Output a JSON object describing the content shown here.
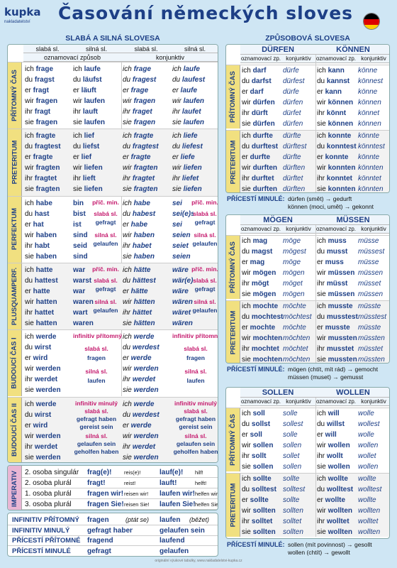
{
  "header": {
    "logo": "kupka",
    "logo_sub": "nakladatelství",
    "title": "Časování německých sloves",
    "left_section": "SLABÁ A SILNÁ SLOVESA",
    "right_section": "ZPŮSOBOVÁ SLOVESA"
  },
  "flag_colors": [
    "#000000",
    "#dd0000",
    "#ffce00"
  ],
  "left": {
    "col_weak": "slabá sl.",
    "col_strong": "silná sl.",
    "ind": "oznamovací způsob",
    "konj": "konjunktiv",
    "blocks": [
      {
        "label": "PŘÍTOMNÝ ČAS",
        "rows": [
          [
            "ich frage",
            "ich laufe",
            "ich frage",
            "ich laufe"
          ],
          [
            "du fragst",
            "du läufst",
            "du fragest",
            "du laufest"
          ],
          [
            "er fragt",
            "er läuft",
            "er frage",
            "er laufe"
          ],
          [
            "wir fragen",
            "wir laufen",
            "wir fragen",
            "wir laufen"
          ],
          [
            "ihr fragt",
            "ihr lauft",
            "ihr fraget",
            "ihr laufet"
          ],
          [
            "sie fragen",
            "sie laufen",
            "sie fragen",
            "sie laufen"
          ]
        ]
      },
      {
        "label": "PRETERITUM",
        "rows": [
          [
            "ich fragte",
            "ich lief",
            "ich fragte",
            "ich liefe"
          ],
          [
            "du fragtest",
            "du liefst",
            "du fragtest",
            "du liefest"
          ],
          [
            "er fragte",
            "er lief",
            "er fragte",
            "er liefe"
          ],
          [
            "wir fragten",
            "wir liefen",
            "wir fragten",
            "wir liefen"
          ],
          [
            "ihr fragtet",
            "ihr lieft",
            "ihr fragtet",
            "ihr liefet"
          ],
          [
            "sie fragten",
            "sie liefen",
            "sie fragten",
            "sie liefen"
          ]
        ]
      },
      {
        "label": "PERFEKTUM",
        "rows": [
          [
            "ich habe",
            "bin",
            "ich habe",
            "sei"
          ],
          [
            "du hast",
            "bist",
            "du habest",
            "sei(e)st"
          ],
          [
            "er hat",
            "ist",
            "er habe",
            "sei"
          ],
          [
            "wir haben",
            "sind",
            "wir haben",
            "seien"
          ],
          [
            "ihr habt",
            "seid",
            "ihr habet",
            "seiet"
          ],
          [
            "sie haben",
            "sind",
            "sie haben",
            "seien"
          ]
        ],
        "notes": [
          "příč. min.",
          "slabá sl.",
          "gefragt",
          "silná sl.",
          "gelaufen"
        ]
      },
      {
        "label": "PLUSQUAMPERF.",
        "rows": [
          [
            "ich hatte",
            "war",
            "ich hätte",
            "wäre"
          ],
          [
            "du hattest",
            "warst",
            "du hättest",
            "wär(e)st"
          ],
          [
            "er hatte",
            "war",
            "er hätte",
            "wäre"
          ],
          [
            "wir hatten",
            "waren",
            "wir hätten",
            "wären"
          ],
          [
            "ihr hattet",
            "wart",
            "ihr hättet",
            "wäret"
          ],
          [
            "sie hatten",
            "waren",
            "sie hätten",
            "wären"
          ]
        ],
        "notes": [
          "příč. min.",
          "slabá sl.",
          "gefragt",
          "silná sl.",
          "gelaufen"
        ]
      },
      {
        "label": "BUDOUCÍ ČAS I",
        "rows": [
          [
            "ich werde",
            "",
            "ich werde",
            ""
          ],
          [
            "du wirst",
            "",
            "du werdest",
            ""
          ],
          [
            "er wird",
            "",
            "er werde",
            ""
          ],
          [
            "wir werden",
            "",
            "wir werden",
            ""
          ],
          [
            "ihr werdet",
            "",
            "ihr werdet",
            ""
          ],
          [
            "sie werden",
            "",
            "sie werden",
            ""
          ]
        ],
        "notes": [
          "infinitiv přítomný",
          "slabá sl.",
          "fragen",
          "silná sl.",
          "laufen"
        ]
      },
      {
        "label": "BUDOUCÍ ČAS II",
        "rows": [
          [
            "ich werde",
            "",
            "ich werde",
            ""
          ],
          [
            "du wirst",
            "",
            "du werdest",
            ""
          ],
          [
            "er wird",
            "",
            "er werde",
            ""
          ],
          [
            "wir werden",
            "",
            "wir werden",
            ""
          ],
          [
            "ihr werdet",
            "",
            "ihr werdet",
            ""
          ],
          [
            "sie werden",
            "",
            "sie werden",
            ""
          ]
        ],
        "notes": [
          "infinitiv minulý",
          "slabá sl.",
          "gefragt haben",
          "gereist sein",
          "silná sl.",
          "gelaufen sein",
          "geholfen haben"
        ]
      }
    ],
    "imperativ": {
      "label": "IMPERATIV",
      "rows": [
        [
          "2. osoba singulár",
          "frag(e)!",
          "reis(e)!",
          "lauf(e)!",
          "hilf!"
        ],
        [
          "2. osoba plurál",
          "fragt!",
          "reist!",
          "lauft!",
          "helft!"
        ],
        [
          "1. osoba plurál",
          "fragen wir!",
          "reisen wir!",
          "laufen wir!",
          "helfen wir!"
        ],
        [
          "3. osoba plurál",
          "fragen Sie!",
          "reisen Sie!",
          "laufen Sie!",
          "helfen Sie!"
        ]
      ]
    },
    "forms": [
      [
        "INFINITIV PŘÍTOMNÝ",
        "fragen",
        "(ptát se)",
        "laufen",
        "(běžet)"
      ],
      [
        "INFINITIV MINULÝ",
        "gefragt haben",
        "",
        "gelaufen sein",
        ""
      ],
      [
        "PŘÍCESTÍ PŘÍTOMNÉ",
        "fragend",
        "",
        "laufend",
        ""
      ],
      [
        "PŘÍCESTÍ MINULÉ",
        "gefragt",
        "",
        "gelaufen",
        ""
      ]
    ]
  },
  "modal": {
    "ind": "oznamovací zp.",
    "konj": "konjunktiv",
    "label_pres": "PŘÍTOMNÝ ČAS",
    "label_pret": "PRETERITUM",
    "participle_label": "PŘÍCESTÍ MINULÉ:",
    "groups": [
      {
        "v1": "DÜRFEN",
        "v2": "KÖNNEN",
        "pres": [
          [
            "ich darf",
            "dürfe",
            "ich kann",
            "könne"
          ],
          [
            "du darfst",
            "dürfest",
            "du kannst",
            "könnest"
          ],
          [
            "er darf",
            "dürfe",
            "er kann",
            "könne"
          ],
          [
            "wir dürfen",
            "dürfen",
            "wir können",
            "können"
          ],
          [
            "ihr dürft",
            "dürfet",
            "ihr könnt",
            "könnet"
          ],
          [
            "sie dürfen",
            "dürfen",
            "sie können",
            "können"
          ]
        ],
        "pret": [
          [
            "ich durfte",
            "dürfte",
            "ich konnte",
            "könnte"
          ],
          [
            "du durftest",
            "dürftest",
            "du konntest",
            "könntest"
          ],
          [
            "er durfte",
            "dürfte",
            "er konnte",
            "könnte"
          ],
          [
            "wir durften",
            "dürften",
            "wir konnten",
            "könnten"
          ],
          [
            "ihr durftet",
            "dürftet",
            "ihr konntet",
            "könntet"
          ],
          [
            "sie durften",
            "dürften",
            "sie konnten",
            "könnten"
          ]
        ],
        "part": [
          "dürfen (smět) → gedurft",
          "können (moci, umět) → gekonnt"
        ]
      },
      {
        "v1": "MÖGEN",
        "v2": "MÜSSEN",
        "pres": [
          [
            "ich mag",
            "möge",
            "ich muss",
            "müsse"
          ],
          [
            "du magst",
            "mögest",
            "du musst",
            "müssest"
          ],
          [
            "er mag",
            "möge",
            "er muss",
            "müsse"
          ],
          [
            "wir mögen",
            "mögen",
            "wir müssen",
            "müssen"
          ],
          [
            "ihr mögt",
            "möget",
            "ihr müsst",
            "müsset"
          ],
          [
            "sie mögen",
            "mögen",
            "sie müssen",
            "müssen"
          ]
        ],
        "pret": [
          [
            "ich mochte",
            "möchte",
            "ich musste",
            "müsste"
          ],
          [
            "du mochtest",
            "möchtest",
            "du musstest",
            "müsstest"
          ],
          [
            "er mochte",
            "möchte",
            "er musste",
            "müsste"
          ],
          [
            "wir mochten",
            "möchten",
            "wir mussten",
            "müssten"
          ],
          [
            "ihr mochtet",
            "möchtet",
            "ihr musstet",
            "müsstet"
          ],
          [
            "sie mochten",
            "möchten",
            "sie mussten",
            "müssten"
          ]
        ],
        "part": [
          "mögen (chtít, mít rád) → gemocht",
          "müssen (muset) → gemusst"
        ]
      },
      {
        "v1": "SOLLEN",
        "v2": "WOLLEN",
        "pres": [
          [
            "ich soll",
            "solle",
            "ich will",
            "wolle"
          ],
          [
            "du sollst",
            "sollest",
            "du willst",
            "wollest"
          ],
          [
            "er soll",
            "solle",
            "er will",
            "wolle"
          ],
          [
            "wir sollen",
            "sollen",
            "wir wollen",
            "wollen"
          ],
          [
            "ihr sollt",
            "sollet",
            "ihr wollt",
            "wollet"
          ],
          [
            "sie sollen",
            "sollen",
            "sie wollen",
            "wollen"
          ]
        ],
        "pret": [
          [
            "ich sollte",
            "sollte",
            "ich wollte",
            "wollte"
          ],
          [
            "du solltest",
            "solltest",
            "du wolltest",
            "wolltest"
          ],
          [
            "er sollte",
            "sollte",
            "er wollte",
            "wollte"
          ],
          [
            "wir sollten",
            "sollten",
            "wir wollten",
            "wollten"
          ],
          [
            "ihr solltet",
            "solltet",
            "ihr wolltet",
            "wolltet"
          ],
          [
            "sie sollten",
            "sollten",
            "sie wollten",
            "wollten"
          ]
        ],
        "part": [
          "sollen (mít povinnost) → gesollt",
          "wollen (chtít) → gewollt"
        ]
      }
    ]
  },
  "footer": "originální výukové tabulky, www.nakladatelstvi-kupka.cz"
}
